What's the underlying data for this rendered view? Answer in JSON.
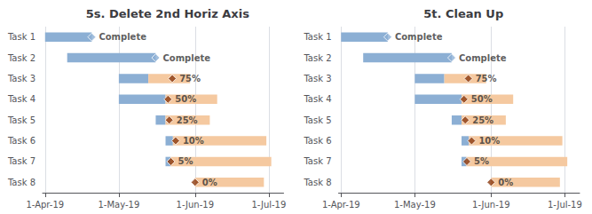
{
  "chart_data": [
    {
      "type": "bar",
      "title": "5s. Delete 2nd Horiz Axis",
      "orientation": "horizontal",
      "stacked": true,
      "categories": [
        "Task 1",
        "Task 2",
        "Task 3",
        "Task 4",
        "Task 5",
        "Task 6",
        "Task 7",
        "Task 8"
      ],
      "starts": [
        0,
        9,
        30,
        30,
        45,
        49,
        49,
        61
      ],
      "series": [
        {
          "color": "#8CAFD4",
          "values": [
            19,
            36,
            12,
            19,
            4,
            3,
            2,
            0
          ]
        },
        {
          "color": "#F5C9A0",
          "values": [
            0,
            0,
            17,
            21,
            18,
            38,
            41,
            28
          ]
        },
        {
          "type": "scatter",
          "marker": "diamond",
          "color": "#8CAFD4",
          "values": [
            19,
            45,
            null,
            null,
            null,
            null,
            null,
            null
          ]
        },
        {
          "type": "scatter",
          "marker": "diamond",
          "color": "#8B3A0F",
          "values": [
            null,
            null,
            51.75,
            50,
            50.5,
            53.1,
            51.15,
            61
          ]
        }
      ],
      "annotations": [
        {
          "text": "Complete",
          "x": 19,
          "y": "Task 1"
        },
        {
          "text": "Complete",
          "x": 45,
          "y": "Task 2"
        },
        {
          "text": "75%",
          "x": 51.75,
          "y": "Task 3"
        },
        {
          "text": "50%",
          "x": 50,
          "y": "Task 4"
        },
        {
          "text": "25%",
          "x": 50.5,
          "y": "Task 5"
        },
        {
          "text": "10%",
          "x": 53.1,
          "y": "Task 6"
        },
        {
          "text": "5%",
          "x": 51.15,
          "y": "Task 7"
        },
        {
          "text": "0%",
          "x": 61,
          "y": "Task 8"
        }
      ],
      "xlim": [
        -1,
        97
      ],
      "xticks": [
        {
          "value": 0,
          "label": "1-Apr-19"
        },
        {
          "value": 30,
          "label": "1-May-19"
        },
        {
          "value": 61,
          "label": "1-Jun-19"
        },
        {
          "value": 91,
          "label": "1-Jul-19"
        }
      ],
      "grid": true
    },
    {
      "type": "bar",
      "title": "5t. Clean Up",
      "orientation": "horizontal",
      "stacked": true,
      "categories": [
        "Task 1",
        "Task 2",
        "Task 3",
        "Task 4",
        "Task 5",
        "Task 6",
        "Task 7",
        "Task 8"
      ],
      "starts": [
        0,
        9,
        30,
        30,
        45,
        49,
        49,
        61
      ],
      "series": [
        {
          "color": "#8CAFD4",
          "values": [
            19,
            36,
            12,
            19,
            4,
            3,
            2,
            0
          ]
        },
        {
          "color": "#F5C9A0",
          "values": [
            0,
            0,
            17,
            21,
            18,
            38,
            41,
            28
          ]
        },
        {
          "type": "scatter",
          "marker": "diamond",
          "color": "#8CAFD4",
          "values": [
            19,
            45,
            null,
            null,
            null,
            null,
            null,
            null
          ]
        },
        {
          "type": "scatter",
          "marker": "diamond",
          "color": "#8B3A0F",
          "values": [
            null,
            null,
            51.75,
            50,
            50.5,
            53.1,
            51.15,
            61
          ]
        }
      ],
      "annotations": [
        {
          "text": "Complete",
          "x": 19,
          "y": "Task 1"
        },
        {
          "text": "Complete",
          "x": 45,
          "y": "Task 2"
        },
        {
          "text": "75%",
          "x": 51.75,
          "y": "Task 3"
        },
        {
          "text": "50%",
          "x": 50,
          "y": "Task 4"
        },
        {
          "text": "25%",
          "x": 50.5,
          "y": "Task 5"
        },
        {
          "text": "10%",
          "x": 53.1,
          "y": "Task 6"
        },
        {
          "text": "5%",
          "x": 51.15,
          "y": "Task 7"
        },
        {
          "text": "0%",
          "x": 61,
          "y": "Task 8"
        }
      ],
      "xlim": [
        -1,
        97
      ],
      "xticks": [
        {
          "value": 0,
          "label": "1-Apr-19"
        },
        {
          "value": 30,
          "label": "1-May-19"
        },
        {
          "value": 61,
          "label": "1-Jun-19"
        },
        {
          "value": 91,
          "label": "1-Jul-19"
        }
      ],
      "grid": true
    }
  ]
}
